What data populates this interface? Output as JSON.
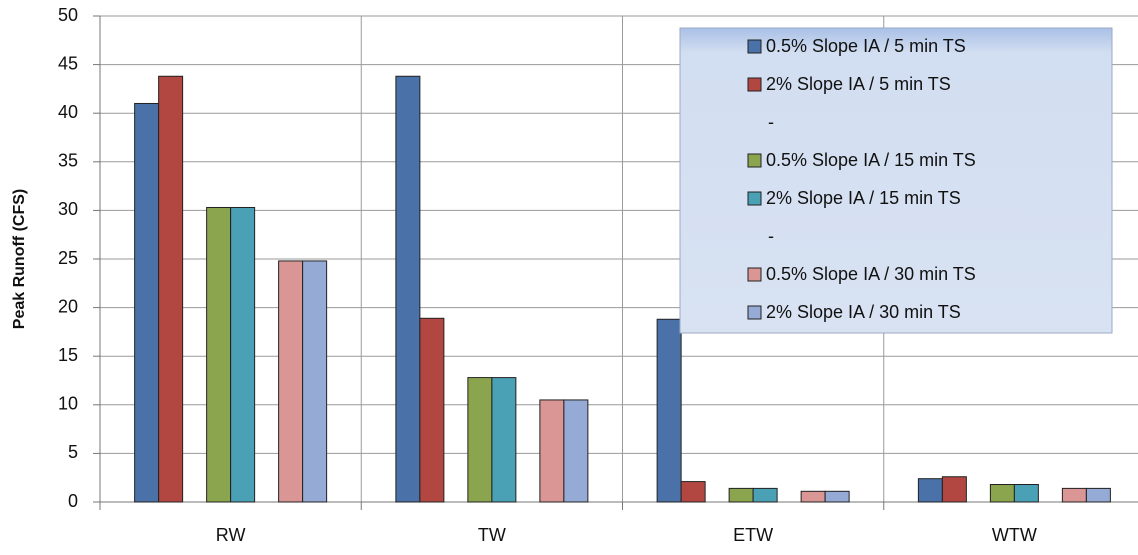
{
  "chart_data": {
    "type": "bar",
    "y_label": "Peak Runoff (CFS)",
    "categories": [
      "RW",
      "TW",
      "ETW",
      "WTW"
    ],
    "series": [
      {
        "name": "0.5% Slope IA / 5 min TS",
        "color": "#4a72a8",
        "values": [
          41,
          43.8,
          18.8,
          2.4
        ]
      },
      {
        "name": "2% Slope IA / 5 min TS",
        "color": "#b24742",
        "values": [
          43.8,
          18.9,
          2.1,
          2.6
        ]
      },
      {
        "name": "-",
        "values": [
          null,
          null,
          null,
          null
        ]
      },
      {
        "name": "0.5% Slope IA / 15 min TS",
        "color": "#8ba54f",
        "values": [
          30.3,
          12.8,
          1.4,
          1.8
        ]
      },
      {
        "name": "2% Slope IA / 15 min TS",
        "color": "#4aa0b5",
        "values": [
          30.3,
          12.8,
          1.4,
          1.8
        ]
      },
      {
        "name": "-",
        "values": [
          null,
          null,
          null,
          null
        ]
      },
      {
        "name": "0.5% Slope IA / 30 min TS",
        "color": "#d99694",
        "values": [
          24.8,
          10.5,
          1.1,
          1.4
        ]
      },
      {
        "name": "2% Slope IA / 30 min TS",
        "color": "#95aad4",
        "values": [
          24.8,
          10.5,
          1.1,
          1.4
        ]
      }
    ],
    "ylim": [
      0,
      50
    ],
    "yticks": [
      0,
      5,
      10,
      15,
      20,
      25,
      30,
      35,
      40,
      45,
      50
    ],
    "grid": true
  }
}
